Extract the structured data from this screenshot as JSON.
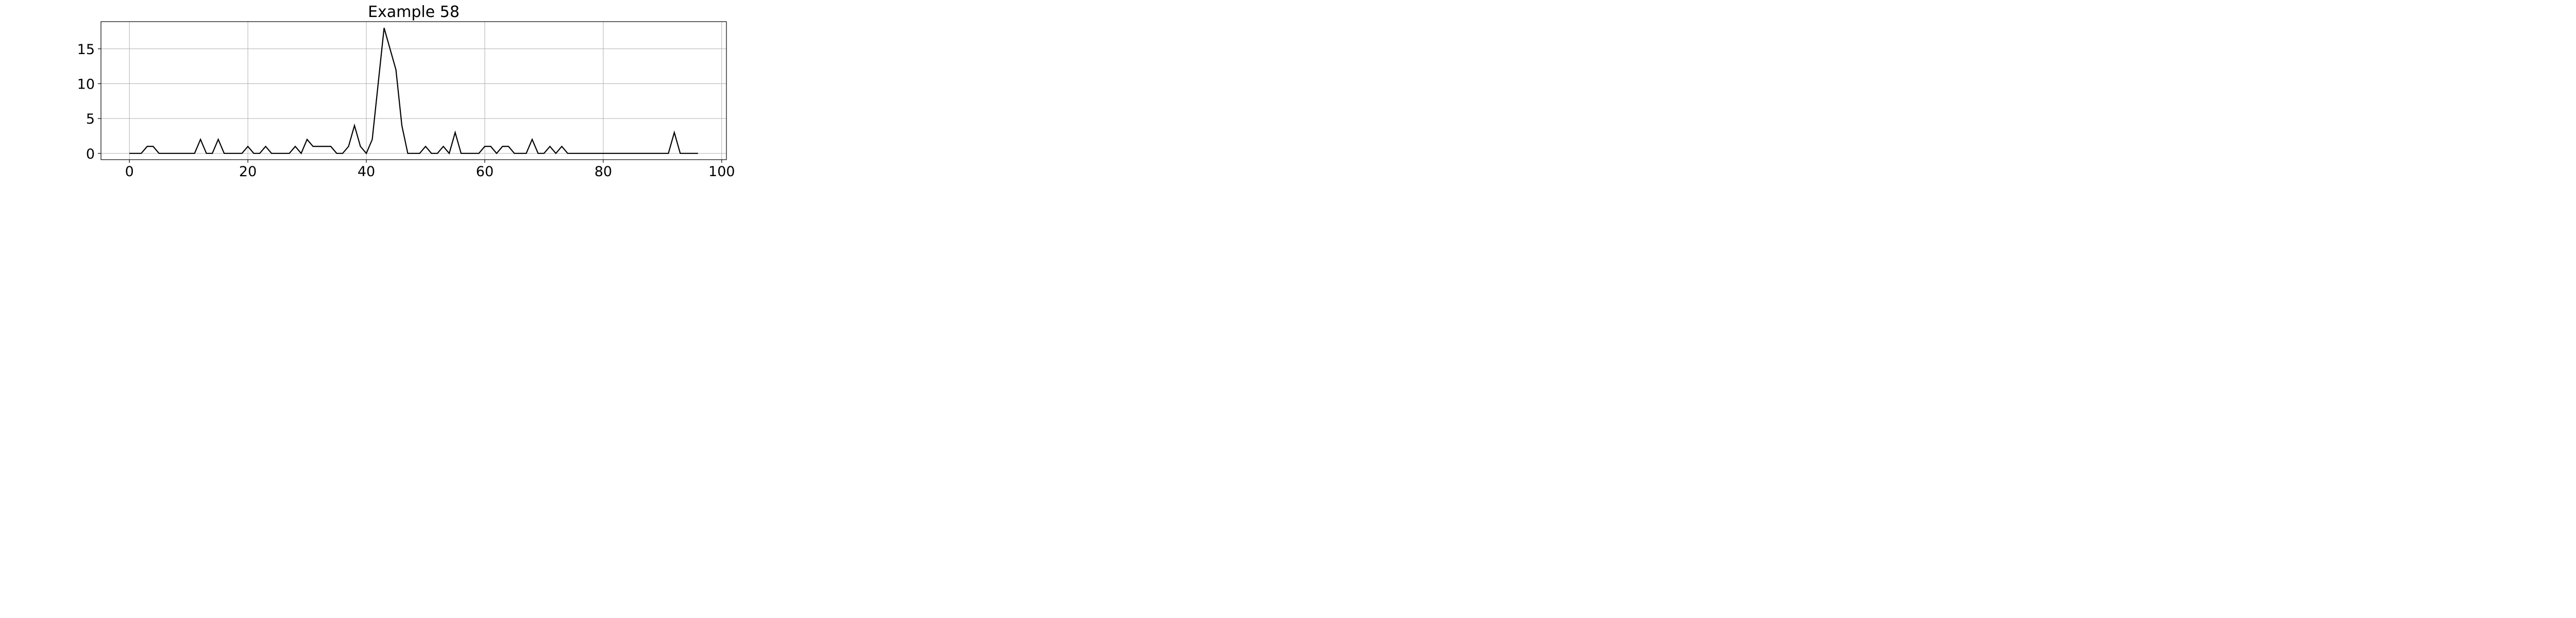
{
  "chart_data": {
    "type": "line",
    "title": "Example 58",
    "xlabel": "",
    "ylabel": "",
    "xlim": [
      -4.8,
      100.8
    ],
    "ylim": [
      -0.9,
      18.9
    ],
    "xticks": [
      0,
      20,
      40,
      60,
      80,
      100
    ],
    "yticks": [
      0,
      5,
      10,
      15
    ],
    "xtick_labels": [
      "0",
      "20",
      "40",
      "60",
      "80",
      "100"
    ],
    "ytick_labels": [
      "0",
      "5",
      "10",
      "15"
    ],
    "grid": true,
    "legend": "none",
    "line_color": "#000000",
    "series": [
      {
        "x": [
          0,
          1,
          2,
          3,
          4,
          5,
          6,
          7,
          8,
          9,
          10,
          11,
          12,
          13,
          14,
          15,
          16,
          17,
          18,
          19,
          20,
          21,
          22,
          23,
          24,
          25,
          26,
          27,
          28,
          29,
          30,
          31,
          32,
          33,
          34,
          35,
          36,
          37,
          38,
          39,
          40,
          41,
          42,
          43,
          44,
          45,
          46,
          47,
          48,
          49,
          50,
          51,
          52,
          53,
          54,
          55,
          56,
          57,
          58,
          59,
          60,
          61,
          62,
          63,
          64,
          65,
          66,
          67,
          68,
          69,
          70,
          71,
          72,
          73,
          74,
          75,
          76,
          77,
          78,
          79,
          80,
          81,
          82,
          83,
          84,
          85,
          86,
          87,
          88,
          89,
          90,
          91,
          92,
          93,
          94,
          95,
          96
        ],
        "values": [
          0,
          0,
          0,
          1,
          1,
          0,
          0,
          0,
          0,
          0,
          0,
          0,
          2,
          0,
          0,
          2,
          0,
          0,
          0,
          0,
          1,
          0,
          0,
          1,
          0,
          0,
          0,
          0,
          1,
          0,
          2,
          1,
          1,
          1,
          1,
          0,
          0,
          1,
          4,
          1,
          0,
          2,
          10,
          18,
          15,
          12,
          4,
          0,
          0,
          0,
          1,
          0,
          0,
          1,
          0,
          3,
          0,
          0,
          0,
          0,
          1,
          1,
          0,
          1,
          1,
          0,
          0,
          0,
          2,
          0,
          0,
          1,
          0,
          1,
          0,
          0,
          0,
          0,
          0,
          0,
          0,
          0,
          0,
          0,
          0,
          0,
          0,
          0,
          0,
          0,
          0,
          0,
          3,
          0,
          0,
          0,
          0
        ]
      }
    ]
  }
}
